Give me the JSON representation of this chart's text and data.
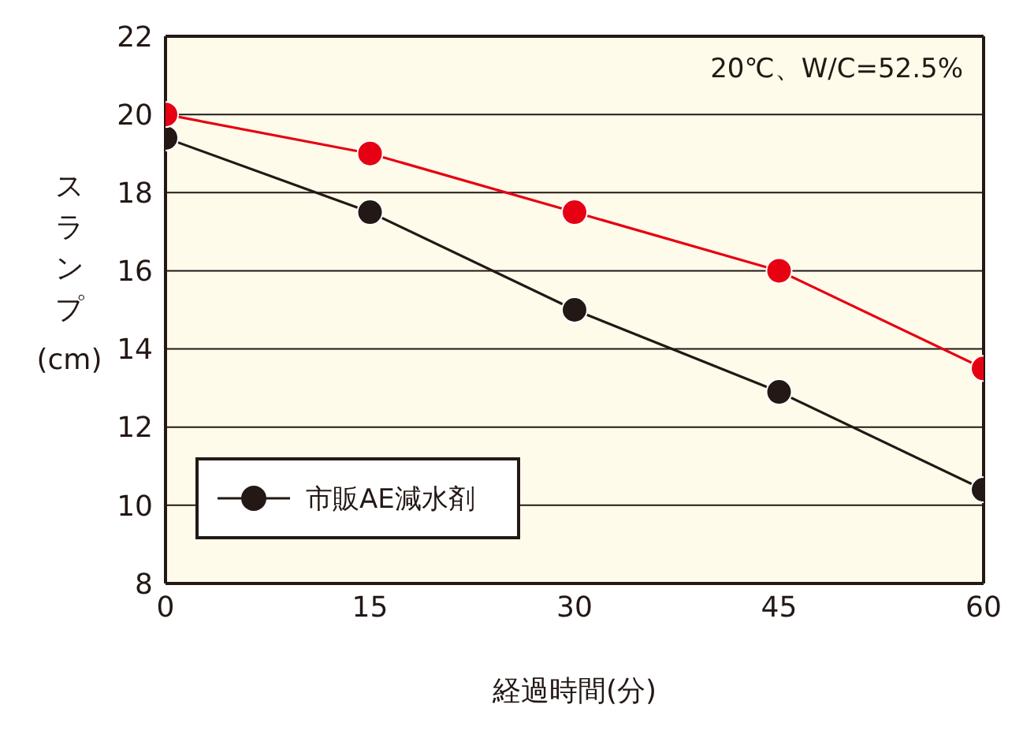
{
  "chart_data": {
    "type": "line",
    "xlabel": "経過時間(分)",
    "ylabel": "スランプ(cm)",
    "annotations": [
      "20℃、W/C=52.5%"
    ],
    "x": [
      0,
      15,
      30,
      45,
      60
    ],
    "xlim": [
      0,
      60
    ],
    "xticks": [
      0,
      15,
      30,
      45,
      60
    ],
    "ylim": [
      8,
      22
    ],
    "yticks": [
      8,
      10,
      12,
      14,
      16,
      18,
      20,
      22
    ],
    "series": [
      {
        "name": "市販AE減水剤",
        "color": "#231815",
        "values": [
          19.4,
          17.5,
          15,
          12.9,
          10.4
        ]
      },
      {
        "color": "#e60012",
        "values": [
          20,
          19,
          17.5,
          16,
          13.5
        ]
      }
    ],
    "grid": "y",
    "legend": "bottom left",
    "marker": "circle",
    "line_style": "solid"
  }
}
